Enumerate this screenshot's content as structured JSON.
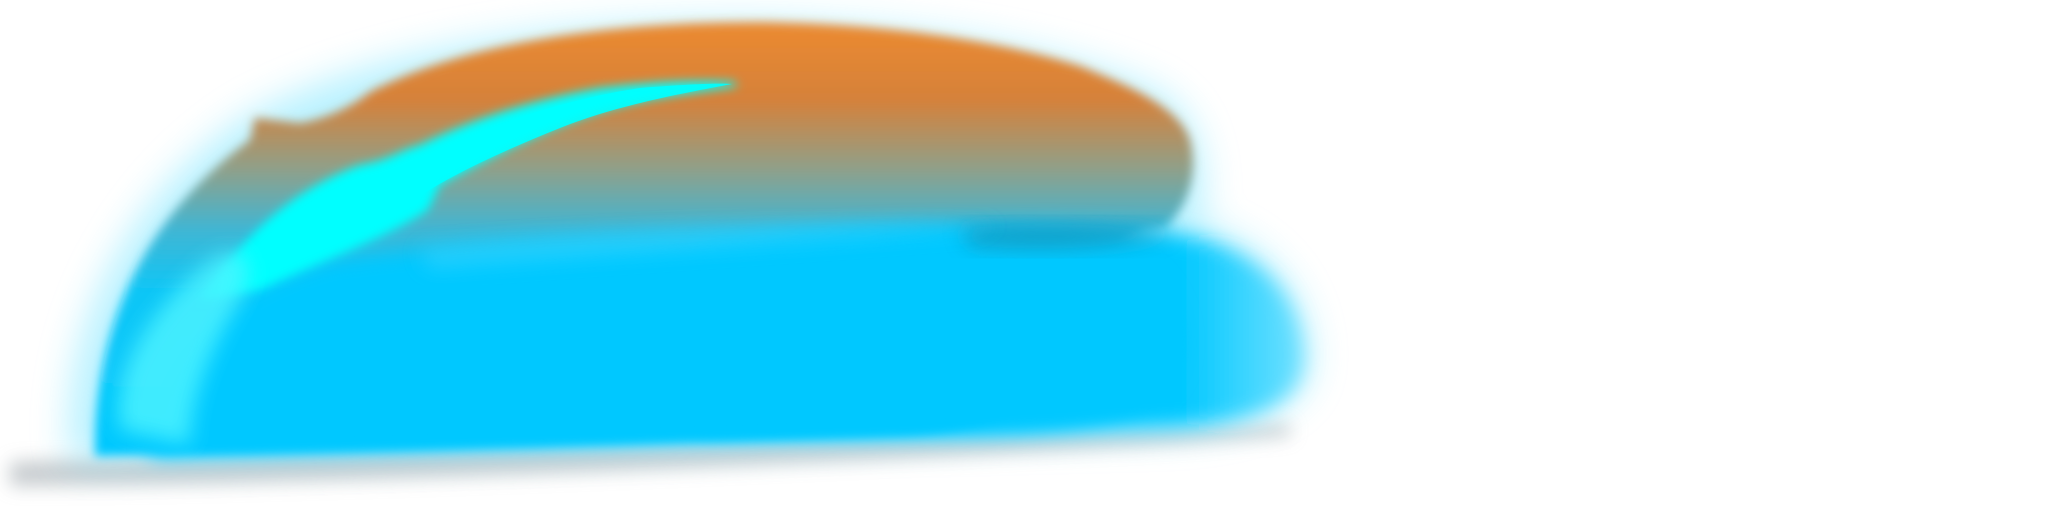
{
  "artwork": {
    "subject": "abstract-blurred-dome-shape",
    "colors": {
      "background": "#ffffff",
      "orange": "#ec8a30",
      "cyan_body": "#00c8ff",
      "cyan_highlight": "#00ffff",
      "shadow": "#9aa3a8"
    }
  }
}
